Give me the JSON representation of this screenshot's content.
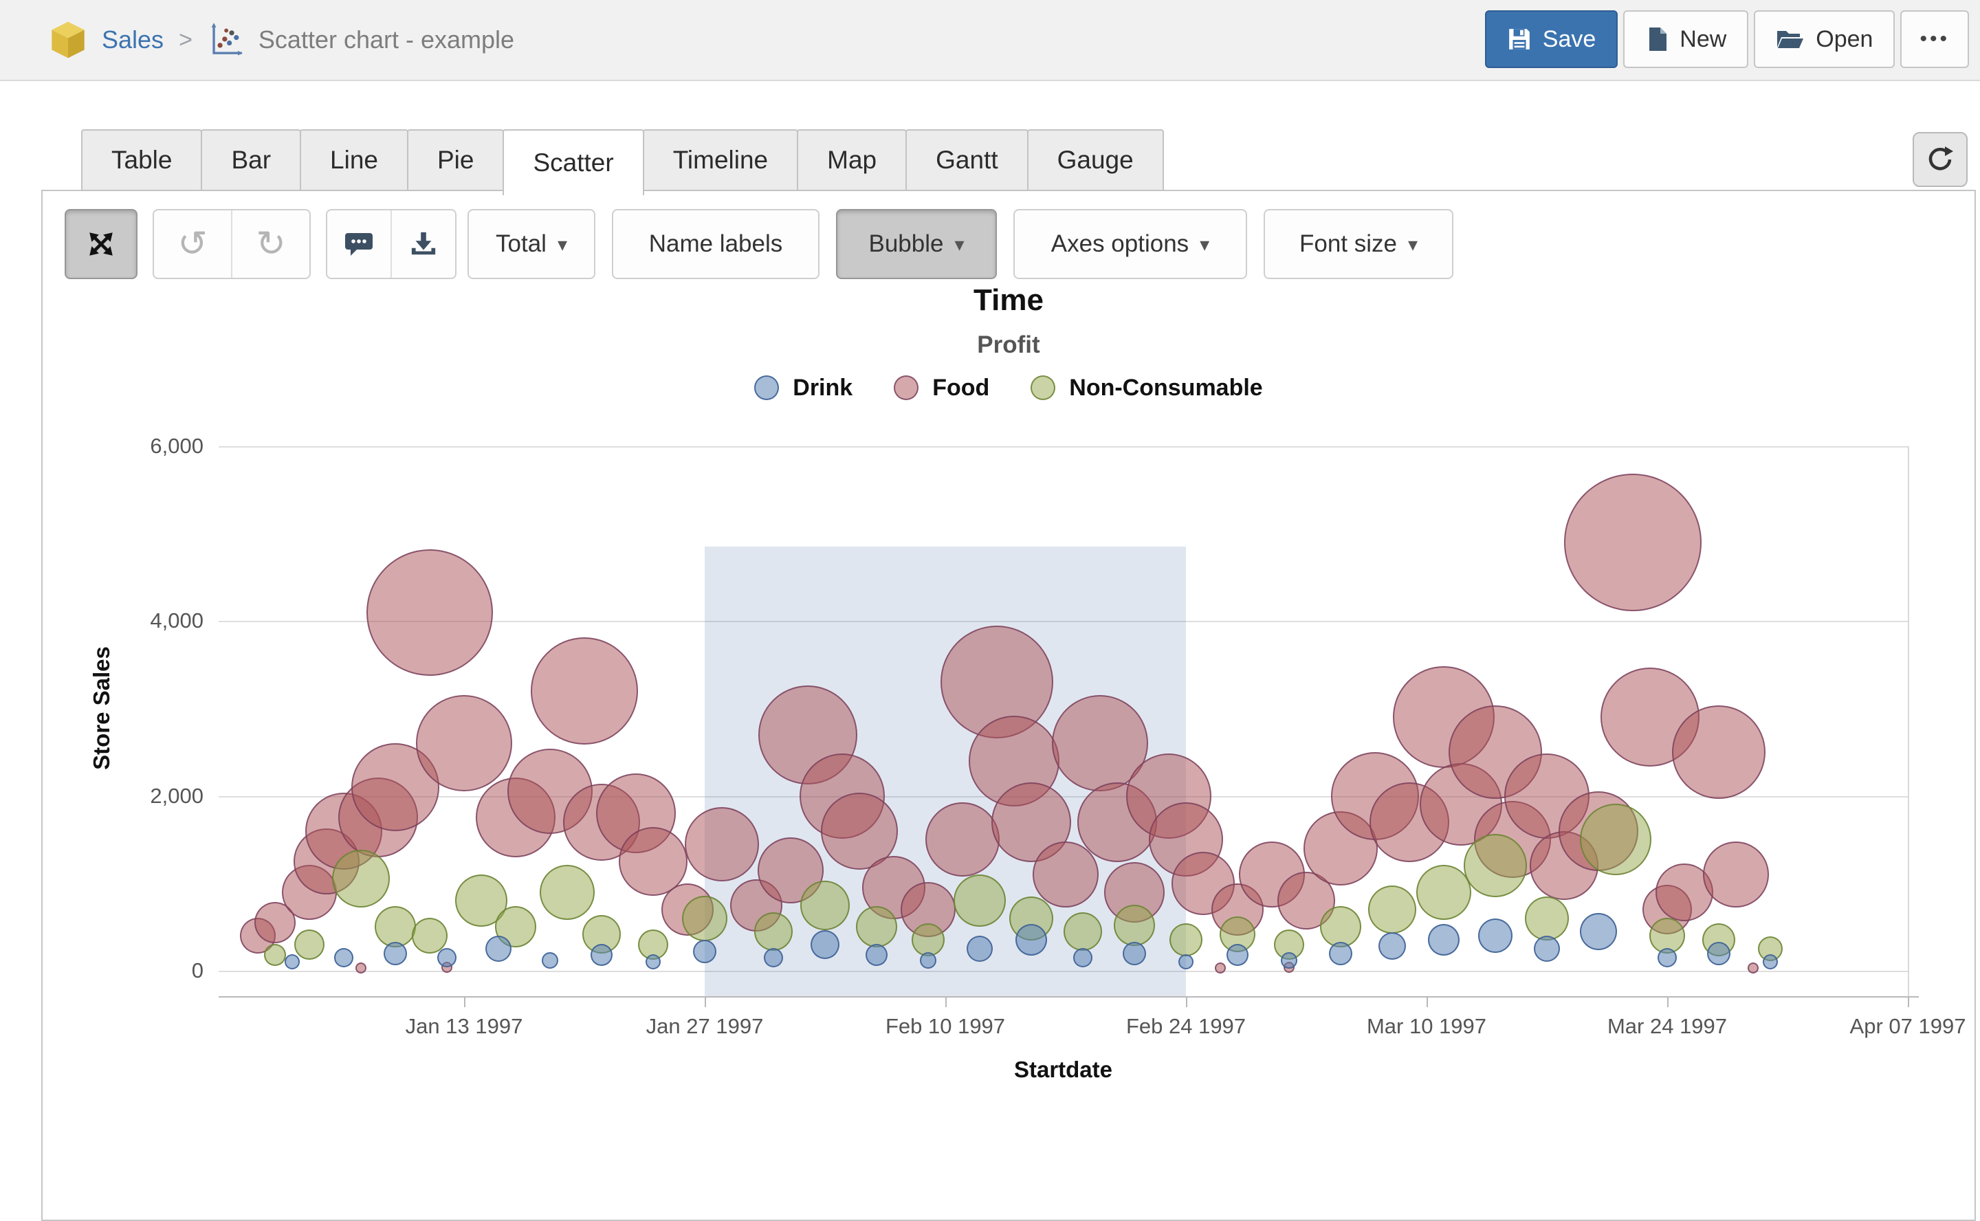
{
  "topbar": {
    "breadcrumb": {
      "root": "Sales",
      "separator": ">",
      "current": "Scatter chart - example"
    },
    "actions": {
      "save": "Save",
      "new": "New",
      "open": "Open",
      "more": "•••"
    }
  },
  "tabs": {
    "items": [
      "Table",
      "Bar",
      "Line",
      "Pie",
      "Scatter",
      "Timeline",
      "Map",
      "Gantt",
      "Gauge"
    ],
    "active": "Scatter"
  },
  "toolbar": {
    "total": "Total",
    "name_labels": "Name labels",
    "bubble": "Bubble",
    "axes_options": "Axes options",
    "font_size": "Font size",
    "caret": "▾",
    "undo_glyph": "↺",
    "redo_glyph": "↻"
  },
  "icons": {
    "breadcrumb_cube": "cube-icon",
    "breadcrumb_chart": "scatter-chart-icon",
    "save": "floppy-disk-icon",
    "new": "file-icon",
    "open": "folder-open-icon",
    "more": "ellipsis-icon",
    "refresh": "refresh-icon",
    "expand": "arrows-expand-icon",
    "undo": "undo-icon",
    "redo": "redo-icon",
    "comment": "speech-bubble-icon",
    "download": "download-icon"
  },
  "chart_data": {
    "type": "scatter",
    "title": "Time",
    "subtitle": "Profit",
    "xlabel": "Startdate",
    "ylabel": "Store Sales",
    "ylim": [
      0,
      6000
    ],
    "grid": "horizontal",
    "legend_position": "top",
    "y_ticks": [
      {
        "label": "0",
        "value": 0
      },
      {
        "label": "2,000",
        "value": 2000
      },
      {
        "label": "4,000",
        "value": 4000
      },
      {
        "label": "6,000",
        "value": 6000
      }
    ],
    "x_ticks": [
      {
        "label": "Jan 13 1997",
        "date": "1997-01-13"
      },
      {
        "label": "Jan 27 1997",
        "date": "1997-01-27"
      },
      {
        "label": "Feb 10 1997",
        "date": "1997-02-10"
      },
      {
        "label": "Feb 24 1997",
        "date": "1997-02-24"
      },
      {
        "label": "Mar 10 1997",
        "date": "1997-03-10"
      },
      {
        "label": "Mar 24 1997",
        "date": "1997-03-24"
      },
      {
        "label": "Apr 07 1997",
        "date": "1997-04-07"
      }
    ],
    "brush_selection": {
      "x_start": "1997-01-27",
      "x_end": "1997-02-24",
      "y_top": 4850,
      "y_bottom": -290
    },
    "size_encodes": "Profit",
    "series": [
      {
        "name": "Drink",
        "fill": "rgba(92,133,183,0.55)",
        "stroke": "rgba(62,98,150,0.9)",
        "points": [
          [
            "1997-01-03",
            100,
            11
          ],
          [
            "1997-01-06",
            150,
            14
          ],
          [
            "1997-01-09",
            200,
            17
          ],
          [
            "1997-01-12",
            150,
            14
          ],
          [
            "1997-01-15",
            250,
            19
          ],
          [
            "1997-01-18",
            120,
            12
          ],
          [
            "1997-01-21",
            180,
            16
          ],
          [
            "1997-01-24",
            100,
            11
          ],
          [
            "1997-01-27",
            220,
            17
          ],
          [
            "1997-01-31",
            150,
            14
          ],
          [
            "1997-02-03",
            300,
            21
          ],
          [
            "1997-02-06",
            180,
            16
          ],
          [
            "1997-02-09",
            120,
            12
          ],
          [
            "1997-02-12",
            250,
            19
          ],
          [
            "1997-02-15",
            350,
            23
          ],
          [
            "1997-02-18",
            150,
            14
          ],
          [
            "1997-02-21",
            200,
            17
          ],
          [
            "1997-02-24",
            100,
            11
          ],
          [
            "1997-02-27",
            180,
            16
          ],
          [
            "1997-03-02",
            120,
            12
          ],
          [
            "1997-03-05",
            200,
            17
          ],
          [
            "1997-03-08",
            280,
            20
          ],
          [
            "1997-03-11",
            350,
            23
          ],
          [
            "1997-03-14",
            400,
            25
          ],
          [
            "1997-03-17",
            250,
            19
          ],
          [
            "1997-03-20",
            450,
            27
          ],
          [
            "1997-03-24",
            150,
            14
          ],
          [
            "1997-03-27",
            200,
            17
          ],
          [
            "1997-03-30",
            100,
            11
          ]
        ]
      },
      {
        "name": "Food",
        "fill": "rgba(172,84,87,0.5)",
        "stroke": "rgba(120,62,92,0.8)",
        "points": [
          [
            "1997-01-01",
            400,
            26
          ],
          [
            "1997-01-02",
            550,
            30
          ],
          [
            "1997-01-04",
            900,
            40
          ],
          [
            "1997-01-05",
            1250,
            48
          ],
          [
            "1997-01-06",
            1600,
            56
          ],
          [
            "1997-01-07",
            30,
            8
          ],
          [
            "1997-01-08",
            1750,
            58
          ],
          [
            "1997-01-09",
            2100,
            64
          ],
          [
            "1997-01-11",
            4100,
            92
          ],
          [
            "1997-01-12",
            40,
            8
          ],
          [
            "1997-01-13",
            2600,
            70
          ],
          [
            "1997-01-16",
            1750,
            58
          ],
          [
            "1997-01-18",
            2050,
            62
          ],
          [
            "1997-01-20",
            3200,
            78
          ],
          [
            "1997-01-21",
            1700,
            56
          ],
          [
            "1997-01-23",
            1800,
            58
          ],
          [
            "1997-01-24",
            1250,
            50
          ],
          [
            "1997-01-26",
            700,
            38
          ],
          [
            "1997-01-28",
            1450,
            54
          ],
          [
            "1997-01-30",
            750,
            38
          ],
          [
            "1997-02-01",
            1150,
            48
          ],
          [
            "1997-02-02",
            2700,
            72
          ],
          [
            "1997-02-04",
            2000,
            62
          ],
          [
            "1997-02-05",
            1600,
            56
          ],
          [
            "1997-02-07",
            950,
            46
          ],
          [
            "1997-02-09",
            700,
            40
          ],
          [
            "1997-02-11",
            1500,
            54
          ],
          [
            "1997-02-13",
            3300,
            82
          ],
          [
            "1997-02-14",
            2400,
            66
          ],
          [
            "1997-02-15",
            1700,
            58
          ],
          [
            "1997-02-17",
            1100,
            48
          ],
          [
            "1997-02-19",
            2600,
            70
          ],
          [
            "1997-02-20",
            1700,
            58
          ],
          [
            "1997-02-21",
            900,
            44
          ],
          [
            "1997-02-23",
            2000,
            62
          ],
          [
            "1997-02-24",
            1500,
            54
          ],
          [
            "1997-02-25",
            1000,
            46
          ],
          [
            "1997-02-26",
            30,
            8
          ],
          [
            "1997-02-27",
            700,
            38
          ],
          [
            "1997-03-01",
            1100,
            48
          ],
          [
            "1997-03-02",
            40,
            8
          ],
          [
            "1997-03-03",
            800,
            42
          ],
          [
            "1997-03-05",
            1400,
            54
          ],
          [
            "1997-03-07",
            2000,
            64
          ],
          [
            "1997-03-09",
            1700,
            58
          ],
          [
            "1997-03-11",
            2900,
            74
          ],
          [
            "1997-03-12",
            1900,
            60
          ],
          [
            "1997-03-14",
            2500,
            68
          ],
          [
            "1997-03-15",
            1500,
            56
          ],
          [
            "1997-03-17",
            2000,
            62
          ],
          [
            "1997-03-18",
            1200,
            50
          ],
          [
            "1997-03-20",
            1600,
            58
          ],
          [
            "1997-03-22",
            4900,
            100
          ],
          [
            "1997-03-23",
            2900,
            72
          ],
          [
            "1997-03-24",
            700,
            36
          ],
          [
            "1997-03-25",
            900,
            42
          ],
          [
            "1997-03-27",
            2500,
            68
          ],
          [
            "1997-03-28",
            1100,
            48
          ],
          [
            "1997-03-29",
            30,
            8
          ]
        ]
      },
      {
        "name": "Non-Consumable",
        "fill": "rgba(150,168,75,0.5)",
        "stroke": "rgba(105,130,50,0.85)",
        "points": [
          [
            "1997-01-02",
            180,
            16
          ],
          [
            "1997-01-04",
            300,
            22
          ],
          [
            "1997-01-07",
            1050,
            42
          ],
          [
            "1997-01-09",
            500,
            30
          ],
          [
            "1997-01-11",
            400,
            26
          ],
          [
            "1997-01-14",
            800,
            38
          ],
          [
            "1997-01-16",
            500,
            30
          ],
          [
            "1997-01-19",
            900,
            40
          ],
          [
            "1997-01-21",
            420,
            28
          ],
          [
            "1997-01-24",
            300,
            22
          ],
          [
            "1997-01-27",
            600,
            33
          ],
          [
            "1997-01-31",
            450,
            28
          ],
          [
            "1997-02-03",
            750,
            36
          ],
          [
            "1997-02-06",
            500,
            30
          ],
          [
            "1997-02-09",
            350,
            24
          ],
          [
            "1997-02-12",
            800,
            38
          ],
          [
            "1997-02-15",
            600,
            32
          ],
          [
            "1997-02-18",
            450,
            28
          ],
          [
            "1997-02-21",
            520,
            30
          ],
          [
            "1997-02-24",
            350,
            24
          ],
          [
            "1997-02-27",
            420,
            26
          ],
          [
            "1997-03-02",
            300,
            22
          ],
          [
            "1997-03-05",
            500,
            30
          ],
          [
            "1997-03-08",
            700,
            35
          ],
          [
            "1997-03-11",
            900,
            40
          ],
          [
            "1997-03-14",
            1200,
            46
          ],
          [
            "1997-03-17",
            600,
            32
          ],
          [
            "1997-03-21",
            1500,
            52
          ],
          [
            "1997-03-24",
            400,
            26
          ],
          [
            "1997-03-27",
            350,
            24
          ],
          [
            "1997-03-30",
            250,
            18
          ]
        ]
      }
    ]
  }
}
